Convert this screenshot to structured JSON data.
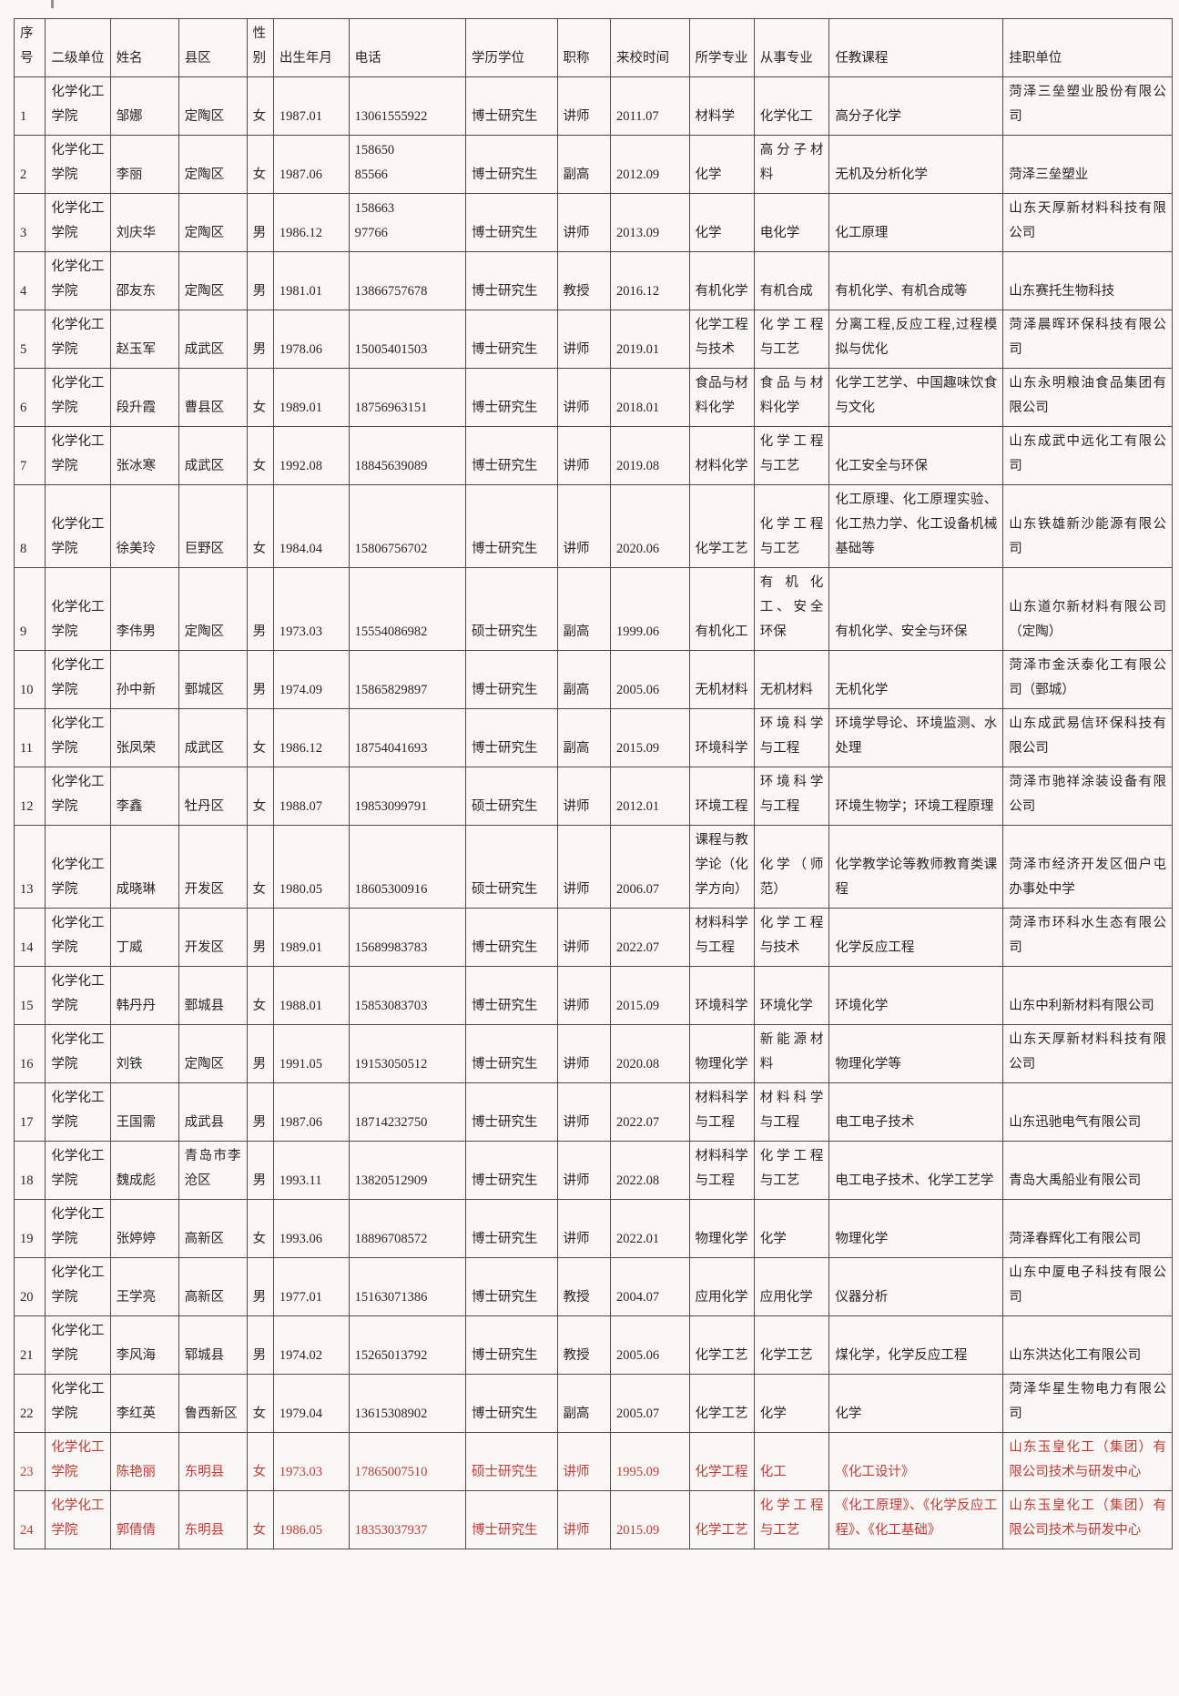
{
  "colors": {
    "normal_text": "#262626",
    "highlight_text": "#c13a37",
    "border": "#4b4b4b",
    "sheet_background": "#fbf7f4"
  },
  "table": {
    "columns": [
      {
        "label": "序号"
      },
      {
        "label": "二级单位"
      },
      {
        "label": "姓名"
      },
      {
        "label": "县区"
      },
      {
        "label": "性别"
      },
      {
        "label": "出生年月"
      },
      {
        "label": "电话"
      },
      {
        "label": "学历学位"
      },
      {
        "label": "职称"
      },
      {
        "label": "来校时间"
      },
      {
        "label": "所学专业"
      },
      {
        "label": "从事专业"
      },
      {
        "label": "任教课程"
      },
      {
        "label": "挂职单位"
      }
    ],
    "rows": [
      {
        "highlight": false,
        "cells": [
          "1",
          "化学化工学院",
          "邹娜",
          "定陶区",
          "女",
          "1987.01",
          "13061555922",
          "博士研究生",
          "讲师",
          "2011.07",
          "材料学",
          "化学化工",
          "高分子化学",
          "菏泽三垒塑业股份有限公司"
        ]
      },
      {
        "highlight": false,
        "cells": [
          "2",
          "化学化工学院",
          "李丽",
          "定陶区",
          "女",
          "1987.06",
          "158650\n85566",
          "博士研究生",
          "副高",
          "2012.09",
          "化学",
          "高分子材料",
          "无机及分析化学",
          "菏泽三垒塑业"
        ]
      },
      {
        "highlight": false,
        "cells": [
          "3",
          "化学化工学院",
          "刘庆华",
          "定陶区",
          "男",
          "1986.12",
          "158663\n97766",
          "博士研究生",
          "讲师",
          "2013.09",
          "化学",
          "电化学",
          "化工原理",
          "山东天厚新材料科技有限公司"
        ]
      },
      {
        "highlight": false,
        "cells": [
          "4",
          "化学化工学院",
          "邵友东",
          "定陶区",
          "男",
          "1981.01",
          "13866757678",
          "博士研究生",
          "教授",
          "2016.12",
          "有机化学",
          "有机合成",
          "有机化学、有机合成等",
          "山东赛托生物科技"
        ]
      },
      {
        "highlight": false,
        "cells": [
          "5",
          "化学化工学院",
          "赵玉军",
          "成武区",
          "男",
          "1978.06",
          "15005401503",
          "博士研究生",
          "讲师",
          "2019.01",
          "化学工程与技术",
          "化学工程与工艺",
          "分离工程,反应工程,过程模拟与优化",
          "菏泽晨晖环保科技有限公司"
        ]
      },
      {
        "highlight": false,
        "cells": [
          "6",
          "化学化工学院",
          "段升霞",
          "曹县区",
          "女",
          "1989.01",
          "18756963151",
          "博士研究生",
          "讲师",
          "2018.01",
          "食品与材料化学",
          "食品与材料化学",
          "化学工艺学、中国趣味饮食与文化",
          "山东永明粮油食品集团有限公司"
        ]
      },
      {
        "highlight": false,
        "cells": [
          "7",
          "化学化工学院",
          "张冰寒",
          "成武区",
          "女",
          "1992.08",
          "18845639089",
          "博士研究生",
          "讲师",
          "2019.08",
          "材料化学",
          "化学工程与工艺",
          "化工安全与环保",
          "山东成武中远化工有限公司"
        ]
      },
      {
        "highlight": false,
        "cells": [
          "8",
          "化学化工学院",
          "徐美玲",
          "巨野区",
          "女",
          "1984.04",
          "15806756702",
          "博士研究生",
          "讲师",
          "2020.06",
          "化学工艺",
          "化学工程与工艺",
          "化工原理、化工原理实验、化工热力学、化工设备机械基础等",
          "山东铁雄新沙能源有限公司"
        ]
      },
      {
        "highlight": false,
        "cells": [
          "9",
          "化学化工学院",
          "李伟男",
          "定陶区",
          "男",
          "1973.03",
          "15554086982",
          "硕士研究生",
          "副高",
          "1999.06",
          "有机化工",
          "有机化工、安全环保",
          "有机化学、安全与环保",
          "山东道尔新材料有限公司（定陶）"
        ]
      },
      {
        "highlight": false,
        "cells": [
          "10",
          "化学化工学院",
          "孙中新",
          "鄄城区",
          "男",
          "1974.09",
          "15865829897",
          "博士研究生",
          "副高",
          "2005.06",
          "无机材料",
          "无机材料",
          "无机化学",
          "菏泽市金沃泰化工有限公司（鄄城）"
        ]
      },
      {
        "highlight": false,
        "cells": [
          "11",
          "化学化工学院",
          "张凤荣",
          "成武区",
          "女",
          "1986.12",
          "18754041693",
          "博士研究生",
          "副高",
          "2015.09",
          "环境科学",
          "环境科学与工程",
          "环境学导论、环境监测、水处理",
          "山东成武易信环保科技有限公司"
        ]
      },
      {
        "highlight": false,
        "cells": [
          "12",
          "化学化工学院",
          "李鑫",
          "牡丹区",
          "女",
          "1988.07",
          "19853099791",
          "硕士研究生",
          "讲师",
          "2012.01",
          "环境工程",
          "环境科学与工程",
          "环境生物学；环境工程原理",
          "菏泽市驰祥涂装设备有限公司"
        ]
      },
      {
        "highlight": false,
        "cells": [
          "13",
          "化学化工学院",
          "成晓琳",
          "开发区",
          "女",
          "1980.05",
          "18605300916",
          "硕士研究生",
          "讲师",
          "2006.07",
          "课程与教学论（化学方向）",
          "化学（师范）",
          "化学教学论等教师教育类课程",
          "菏泽市经济开发区佃户屯办事处中学"
        ]
      },
      {
        "highlight": false,
        "cells": [
          "14",
          "化学化工学院",
          "丁威",
          "开发区",
          "男",
          "1989.01",
          "15689983783",
          "博士研究生",
          "讲师",
          "2022.07",
          "材料科学与工程",
          "化学工程与技术",
          "化学反应工程",
          "菏泽市环科水生态有限公司"
        ]
      },
      {
        "highlight": false,
        "cells": [
          "15",
          "化学化工学院",
          "韩丹丹",
          "鄄城县",
          "女",
          "1988.01",
          "15853083703",
          "博士研究生",
          "讲师",
          "2015.09",
          "环境科学",
          "环境化学",
          "环境化学",
          "山东中利新材料有限公司"
        ]
      },
      {
        "highlight": false,
        "cells": [
          "16",
          "化学化工学院",
          "刘铁",
          "定陶区",
          "男",
          "1991.05",
          "19153050512",
          "博士研究生",
          "讲师",
          "2020.08",
          "物理化学",
          "新能源材料",
          "物理化学等",
          "山东天厚新材料科技有限公司"
        ]
      },
      {
        "highlight": false,
        "cells": [
          "17",
          "化学化工学院",
          "王国需",
          "成武县",
          "男",
          "1987.06",
          "18714232750",
          "博士研究生",
          "讲师",
          "2022.07",
          "材料科学与工程",
          "材料科学与工程",
          "电工电子技术",
          "山东迅驰电气有限公司"
        ]
      },
      {
        "highlight": false,
        "cells": [
          "18",
          "化学化工学院",
          "魏成彪",
          "青岛市李沧区",
          "男",
          "1993.11",
          "13820512909",
          "博士研究生",
          "讲师",
          "2022.08",
          "材料科学与工程",
          "化学工程与工艺",
          "电工电子技术、化学工艺学",
          "青岛大禹船业有限公司"
        ]
      },
      {
        "highlight": false,
        "cells": [
          "19",
          "化学化工学院",
          "张婷婷",
          "高新区",
          "女",
          "1993.06",
          "18896708572",
          "博士研究生",
          "讲师",
          "2022.01",
          "物理化学",
          "化学",
          "物理化学",
          "菏泽春辉化工有限公司"
        ]
      },
      {
        "highlight": false,
        "cells": [
          "20",
          "化学化工学院",
          "王学亮",
          "高新区",
          "男",
          "1977.01",
          "15163071386",
          "博士研究生",
          "教授",
          "2004.07",
          "应用化学",
          "应用化学",
          "仪器分析",
          "山东中厦电子科技有限公司"
        ]
      },
      {
        "highlight": false,
        "cells": [
          "21",
          "化学化工学院",
          "李风海",
          "郓城县",
          "男",
          "1974.02",
          "15265013792",
          "博士研究生",
          "教授",
          "2005.06",
          "化学工艺",
          "化学工艺",
          "煤化学，化学反应工程",
          "山东洪达化工有限公司"
        ]
      },
      {
        "highlight": false,
        "cells": [
          "22",
          "化学化工学院",
          "李红英",
          "鲁西新区",
          "女",
          "1979.04",
          "13615308902",
          "博士研究生",
          "副高",
          "2005.07",
          "化学工艺",
          "化学",
          "化学",
          "菏泽华星生物电力有限公司"
        ]
      },
      {
        "highlight": true,
        "cells": [
          "23",
          "化学化工学院",
          "陈艳丽",
          "东明县",
          "女",
          "1973.03",
          "17865007510",
          "硕士研究生",
          "讲师",
          "1995.09",
          "化学工程",
          "化工",
          "《化工设计》",
          "山东玉皇化工（集团）有限公司技术与研发中心"
        ]
      },
      {
        "highlight": true,
        "cells": [
          "24",
          "化学化工学院",
          "郭倩倩",
          "东明县",
          "女",
          "1986.05",
          "18353037937",
          "博士研究生",
          "讲师",
          "2015.09",
          "化学工艺",
          "化学工程与工艺",
          "《化工原理》、《化学反应工程》、《化工基础》",
          "山东玉皇化工（集团）有限公司技术与研发中心"
        ]
      }
    ]
  }
}
